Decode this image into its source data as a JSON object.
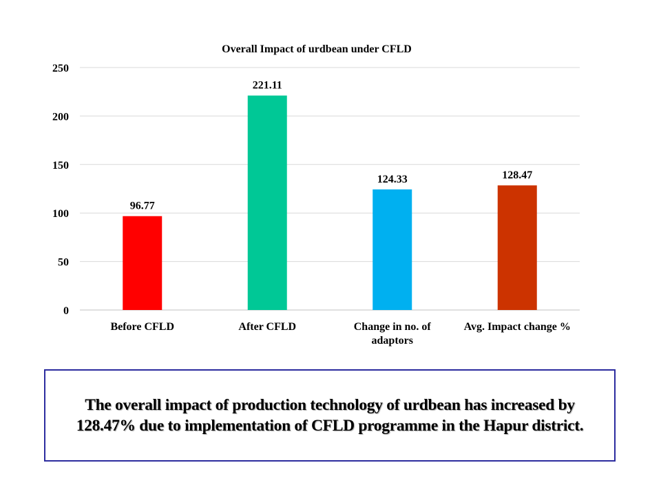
{
  "chart_data": {
    "type": "bar",
    "title": "Overall  Impact of urdbean under CFLD",
    "categories": [
      "Before CFLD",
      "After CFLD",
      "Change in no. of adaptors",
      "Avg. Impact change %"
    ],
    "category_lines": [
      [
        "Before CFLD"
      ],
      [
        "After CFLD"
      ],
      [
        "Change in no. of",
        "adaptors"
      ],
      [
        "Avg. Impact change %"
      ]
    ],
    "values": [
      96.77,
      221.11,
      124.33,
      128.47
    ],
    "value_labels": [
      "96.77",
      "221.11",
      "124.33",
      "128.47"
    ],
    "colors": [
      "#ff0000",
      "#00c896",
      "#00b0f0",
      "#cc3300"
    ],
    "ylim": [
      0,
      250
    ],
    "yticks": [
      0,
      50,
      100,
      150,
      200,
      250
    ],
    "xlabel": "",
    "ylabel": "",
    "grid": true,
    "legend": "none"
  },
  "note": {
    "line1": "The overall impact of production technology of urdbean has increased by",
    "line2": "128.47% due to implementation of CFLD programme in the Hapur district."
  }
}
